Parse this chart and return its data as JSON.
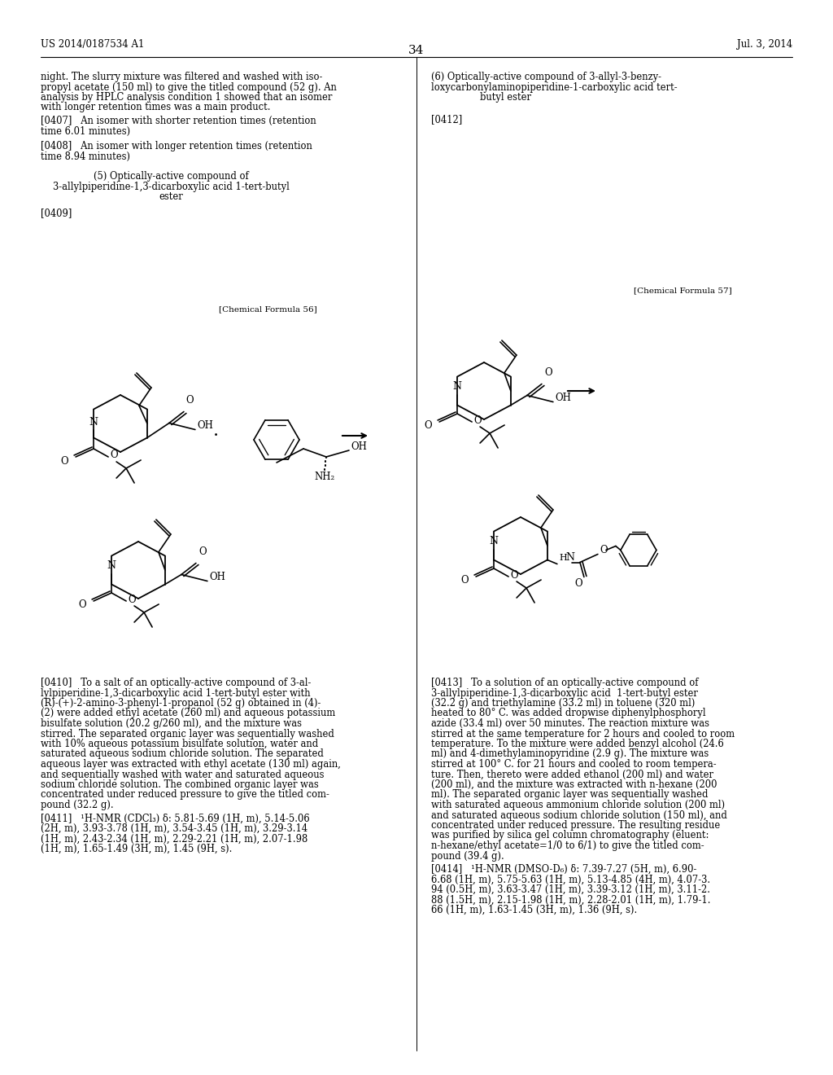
{
  "page_bg": "#ffffff",
  "header_left": "US 2014/0187534 A1",
  "header_right": "Jul. 3, 2014",
  "page_number": "34",
  "figsize": [
    10.24,
    13.2
  ],
  "dpi": 100
}
